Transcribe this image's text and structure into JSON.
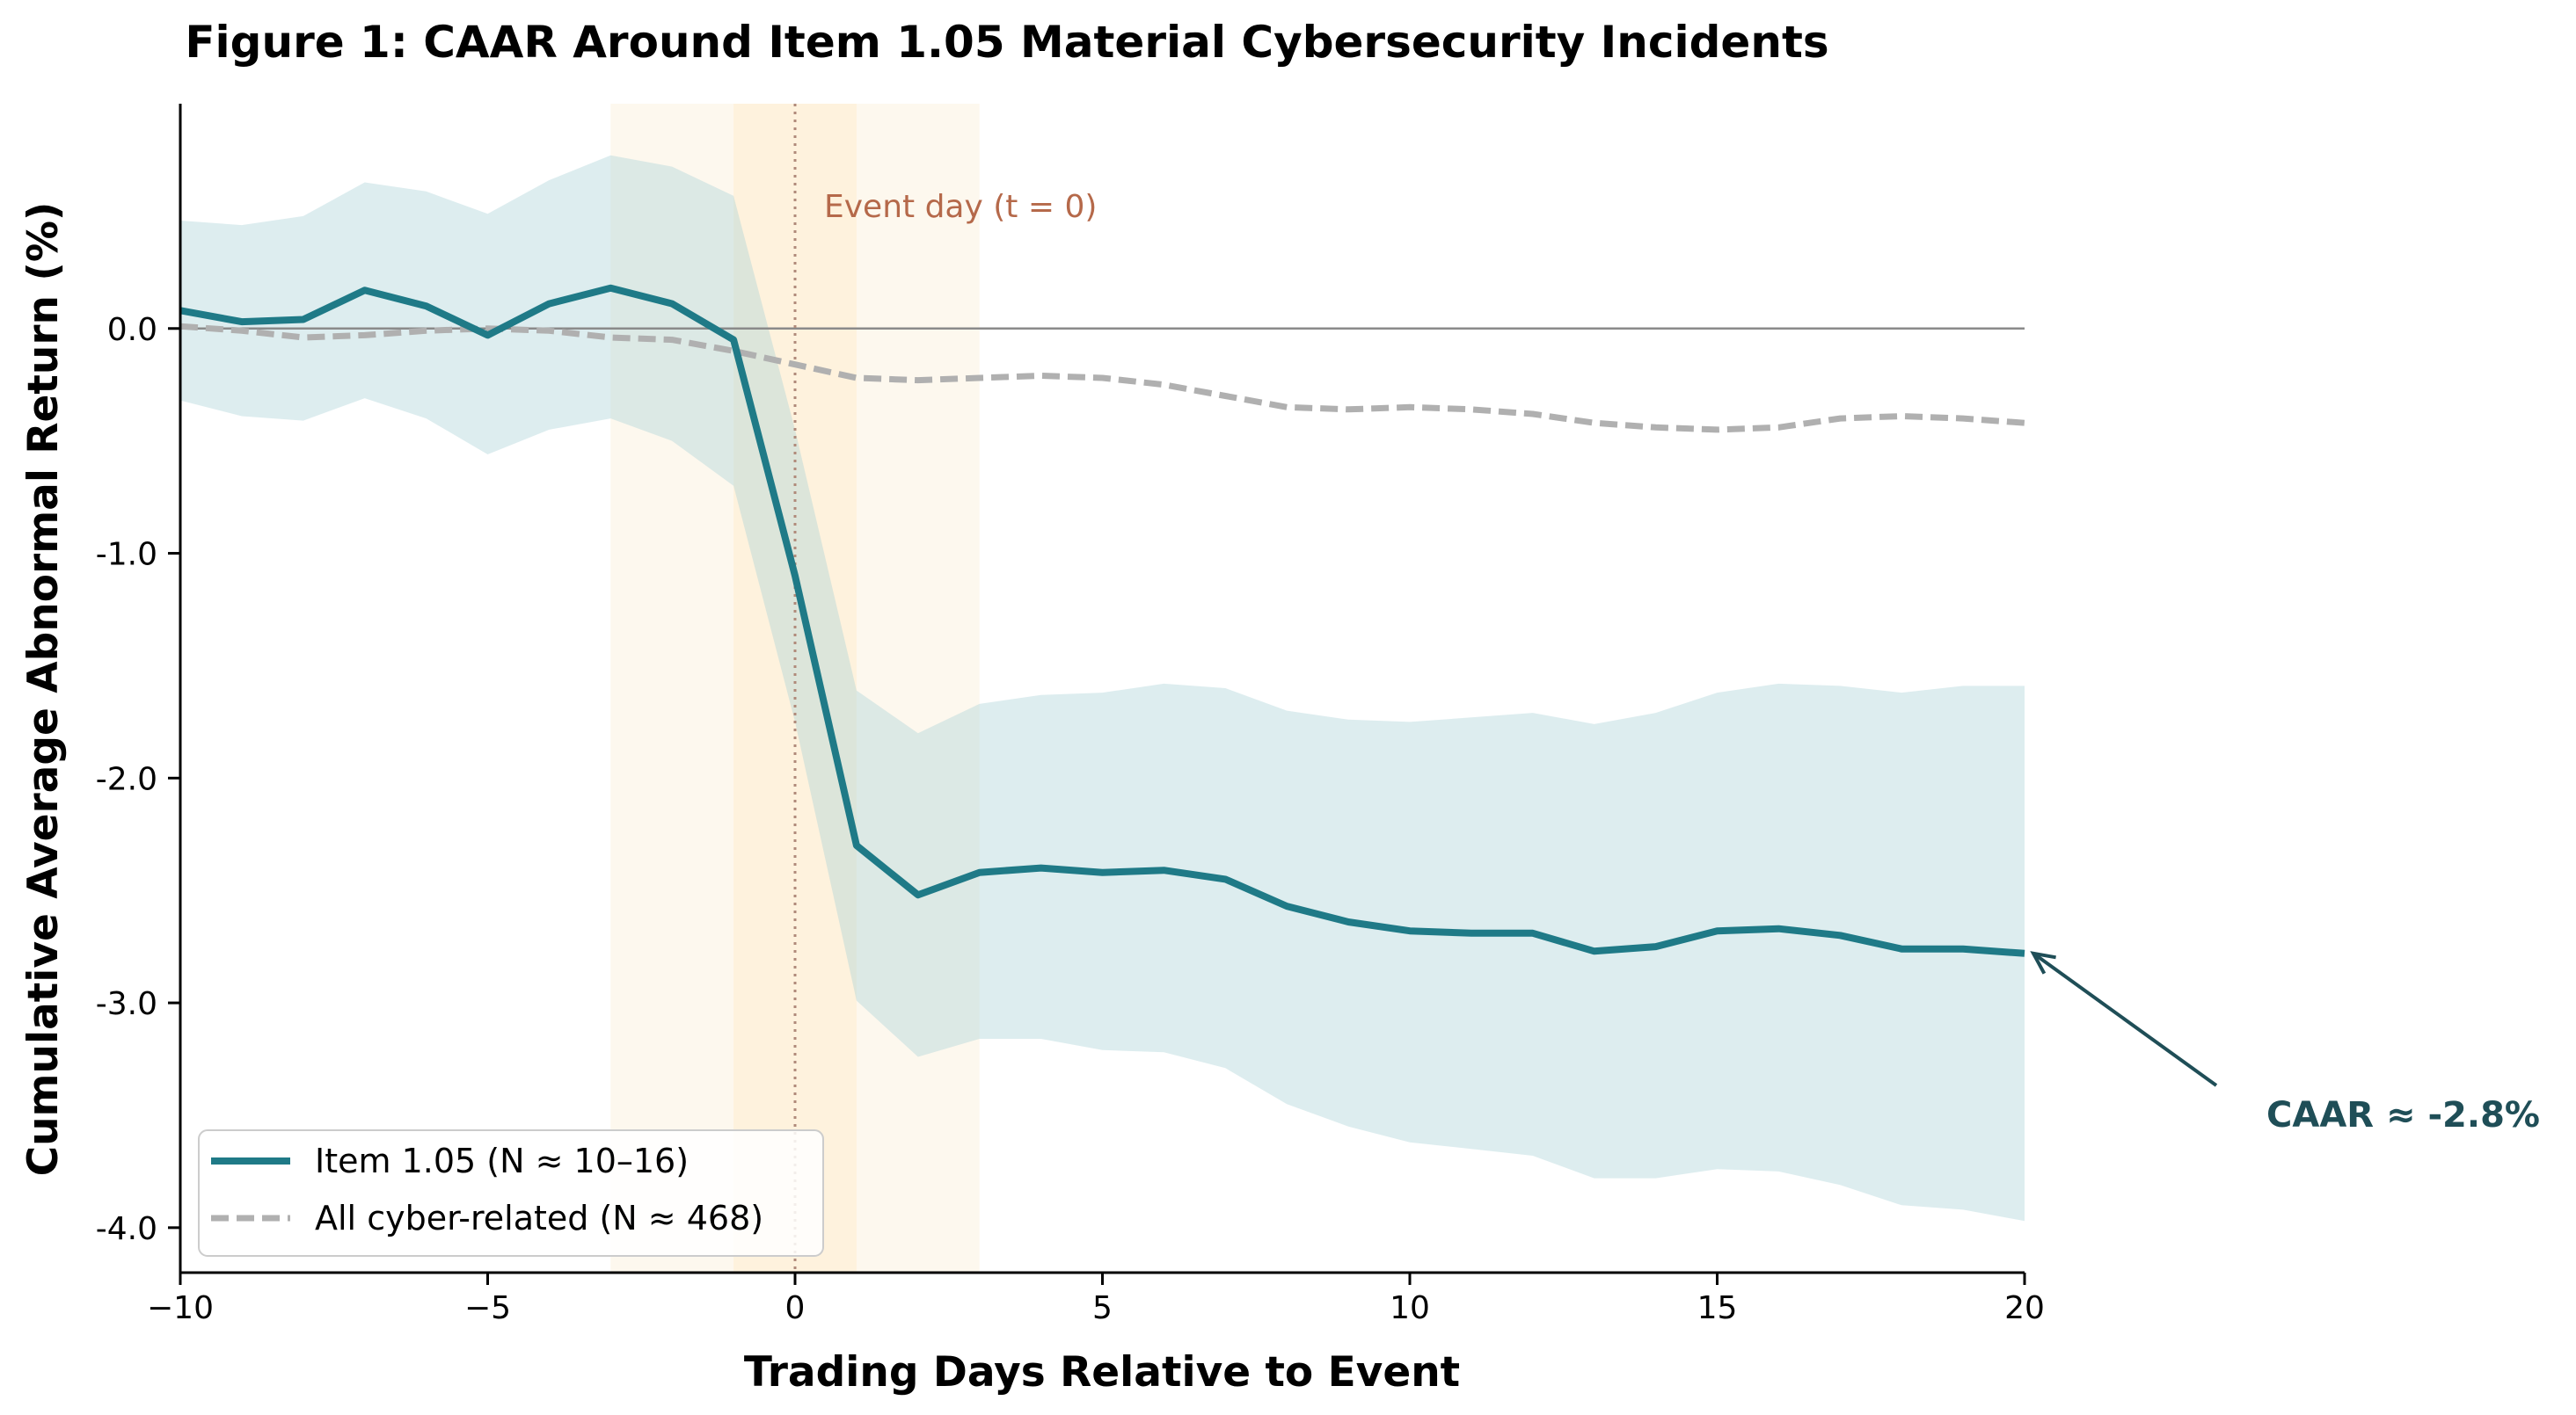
{
  "chart_data": {
    "type": "line",
    "title": "Figure 1: CAAR Around Item 1.05 Material Cybersecurity Incidents",
    "xlabel": "Trading Days Relative to Event",
    "ylabel": "Cumulative Average Abnormal Return (%)",
    "xlim": [
      -10,
      20
    ],
    "ylim": [
      -4.2,
      1.0
    ],
    "x_ticks": [
      -10,
      -5,
      0,
      5,
      10,
      15,
      20
    ],
    "x_tick_labels": [
      "−10",
      "−5",
      "0",
      "5",
      "10",
      "15",
      "20"
    ],
    "y_ticks": [
      0.0,
      -1.0,
      -2.0,
      -3.0,
      -4.0
    ],
    "y_tick_labels": [
      "0.0",
      "-1.0",
      "-2.0",
      "-3.0",
      "-4.0"
    ],
    "x": [
      -10,
      -9,
      -8,
      -7,
      -6,
      -5,
      -4,
      -3,
      -2,
      -1,
      0,
      1,
      2,
      3,
      4,
      5,
      6,
      7,
      8,
      9,
      10,
      11,
      12,
      13,
      14,
      15,
      16,
      17,
      18,
      19,
      20
    ],
    "series": [
      {
        "name": "Item 1.05 (N ≈ 10–16)",
        "color": "#1f7a87",
        "style": "solid",
        "values": [
          0.08,
          0.03,
          0.04,
          0.17,
          0.1,
          -0.03,
          0.11,
          0.18,
          0.11,
          -0.05,
          -1.1,
          -2.3,
          -2.52,
          -2.42,
          -2.4,
          -2.42,
          -2.41,
          -2.45,
          -2.57,
          -2.64,
          -2.68,
          -2.69,
          -2.69,
          -2.77,
          -2.75,
          -2.68,
          -2.67,
          -2.7,
          -2.76,
          -2.76,
          -2.78
        ],
        "ci_upper": [
          0.48,
          0.46,
          0.5,
          0.65,
          0.61,
          0.51,
          0.66,
          0.77,
          0.72,
          0.59,
          -0.45,
          -1.61,
          -1.8,
          -1.67,
          -1.63,
          -1.62,
          -1.58,
          -1.6,
          -1.7,
          -1.74,
          -1.75,
          -1.73,
          -1.71,
          -1.76,
          -1.71,
          -1.62,
          -1.58,
          -1.59,
          -1.62,
          -1.59,
          -1.59
        ],
        "ci_lower": [
          -0.32,
          -0.39,
          -0.41,
          -0.31,
          -0.4,
          -0.56,
          -0.45,
          -0.4,
          -0.5,
          -0.7,
          -1.75,
          -2.99,
          -3.24,
          -3.16,
          -3.16,
          -3.21,
          -3.22,
          -3.29,
          -3.45,
          -3.55,
          -3.62,
          -3.65,
          -3.68,
          -3.78,
          -3.78,
          -3.74,
          -3.75,
          -3.81,
          -3.9,
          -3.92,
          -3.97
        ]
      },
      {
        "name": "All cyber-related (N ≈ 468)",
        "color": "#b0b0b0",
        "style": "dashed",
        "values": [
          0.01,
          -0.01,
          -0.04,
          -0.03,
          -0.01,
          0.0,
          -0.01,
          -0.04,
          -0.05,
          -0.1,
          -0.16,
          -0.22,
          -0.23,
          -0.22,
          -0.21,
          -0.22,
          -0.25,
          -0.3,
          -0.35,
          -0.36,
          -0.35,
          -0.36,
          -0.38,
          -0.42,
          -0.44,
          -0.45,
          -0.44,
          -0.4,
          -0.39,
          -0.4,
          -0.42
        ]
      }
    ],
    "shaded_windows": [
      {
        "x_start": -3,
        "x_end": 3,
        "color": "#fdf6ea"
      },
      {
        "x_start": -1,
        "x_end": 1,
        "color": "#fef0d8"
      }
    ],
    "event_line": {
      "x": 0,
      "label": "Event day (t = 0)"
    },
    "zero_line": {
      "y": 0
    },
    "annotation": {
      "text": "CAAR ≈ -2.8%",
      "x": 20,
      "y": -2.78,
      "color": "#1f4e57"
    },
    "legend_position": "lower-left",
    "grid": false
  }
}
